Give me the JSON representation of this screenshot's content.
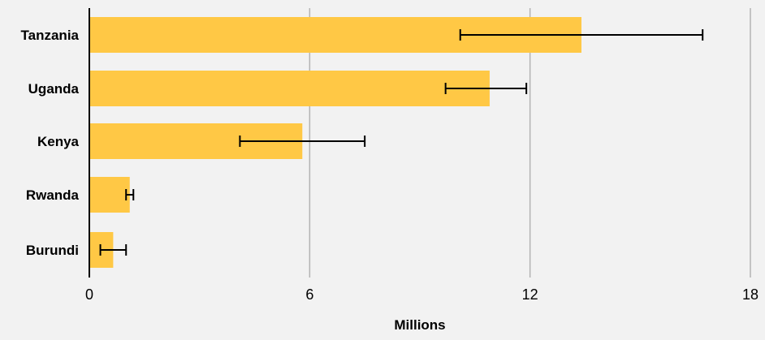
{
  "chart_data": {
    "type": "bar",
    "orientation": "horizontal",
    "categories": [
      "Tanzania",
      "Uganda",
      "Kenya",
      "Rwanda",
      "Burundi"
    ],
    "values": [
      13.4,
      10.9,
      5.8,
      1.1,
      0.65
    ],
    "error_bars": [
      {
        "low": 10.1,
        "high": 16.7
      },
      {
        "low": 9.7,
        "high": 11.9
      },
      {
        "low": 4.1,
        "high": 7.5
      },
      {
        "low": 1.0,
        "high": 1.2
      },
      {
        "low": 0.3,
        "high": 1.0
      }
    ],
    "xlabel": "Millions",
    "ylabel": "",
    "xlim": [
      0,
      18
    ],
    "xticks": [
      "0",
      "6",
      "12",
      "18"
    ],
    "grid": "vertical",
    "colors": {
      "bar": "#ffc845",
      "grid": "#b3b3b3",
      "axis": "#000000",
      "error": "#000000",
      "background": "#f2f2f2"
    }
  }
}
